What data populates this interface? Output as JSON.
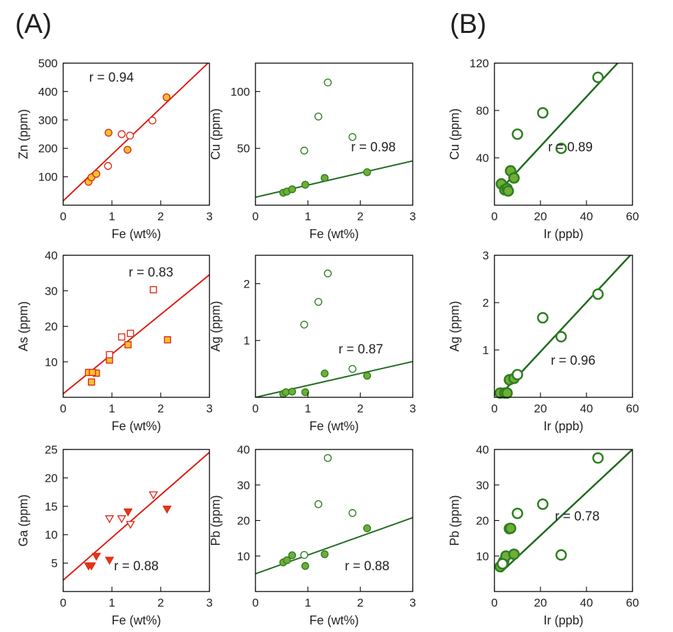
{
  "figure": {
    "panel_labels": [
      "(A)",
      "(B)"
    ]
  },
  "colors": {
    "red_line": "#dd1b10",
    "red_stroke": "#dd2a16",
    "yellow_fill": "#f2c230",
    "green_line": "#1f6b1f",
    "green_stroke": "#2e7d22",
    "green_fill": "#6fae35"
  },
  "chart_data": [
    {
      "id": "zn-fe",
      "type": "scatter",
      "theme": "red",
      "marker": "circle",
      "xlabel": "Fe (wt%)",
      "ylabel": "Zn (ppm)",
      "xlim": [
        0,
        3
      ],
      "ylim": [
        0,
        500
      ],
      "xticks": [
        0,
        1,
        2,
        3
      ],
      "yticks": [
        100,
        200,
        300,
        400,
        500
      ],
      "r_text": "r = 0.94",
      "fit": [
        [
          0,
          15
        ],
        [
          3,
          505
        ]
      ],
      "series": [
        {
          "filled": true,
          "x": [
            0.52,
            0.58,
            0.68,
            1.32,
            2.12,
            0.93
          ],
          "y": [
            82,
            98,
            110,
            195,
            380,
            255
          ]
        },
        {
          "filled": false,
          "x": [
            0.92,
            1.2,
            1.37,
            1.83
          ],
          "y": [
            138,
            250,
            245,
            298
          ]
        }
      ]
    },
    {
      "id": "cu-fe",
      "type": "scatter",
      "theme": "green",
      "marker": "circle",
      "xlabel": "Fe (wt%)",
      "ylabel": "Cu (ppm)",
      "xlim": [
        0,
        3
      ],
      "ylim": [
        0,
        125
      ],
      "xticks": [
        0,
        1,
        2,
        3
      ],
      "yticks": [
        50,
        100
      ],
      "r_text": "r = 0.98",
      "fit": [
        [
          0,
          7
        ],
        [
          3,
          39
        ]
      ],
      "series": [
        {
          "filled": true,
          "x": [
            0.53,
            0.6,
            0.7,
            0.95,
            1.32,
            2.13
          ],
          "y": [
            11,
            12,
            14,
            18,
            24,
            29
          ]
        },
        {
          "filled": false,
          "x": [
            0.93,
            1.2,
            1.38,
            1.85
          ],
          "y": [
            48,
            78,
            108,
            60
          ]
        }
      ]
    },
    {
      "id": "cu-ir",
      "type": "scatter",
      "theme": "green",
      "marker": "circle",
      "xlabel": "Ir (ppb)",
      "ylabel": "Cu (ppm)",
      "xlim": [
        0,
        60
      ],
      "ylim": [
        0,
        120
      ],
      "xticks": [
        0,
        20,
        40,
        60
      ],
      "yticks": [
        40,
        80,
        120
      ],
      "r_text": "r = 0.89",
      "fit": [
        [
          3,
          14
        ],
        [
          54,
          121
        ]
      ],
      "series": [
        {
          "filled": true,
          "x": [
            3,
            4.5,
            5.5,
            6,
            7,
            8.5
          ],
          "y": [
            18,
            13,
            14,
            12,
            29,
            23
          ]
        },
        {
          "filled": false,
          "x": [
            10,
            21,
            29,
            45
          ],
          "y": [
            60,
            78,
            48,
            108
          ]
        }
      ]
    },
    {
      "id": "as-fe",
      "type": "scatter",
      "theme": "red",
      "marker": "square",
      "xlabel": "Fe (wt%)",
      "ylabel": "As (ppm)",
      "xlim": [
        0,
        3
      ],
      "ylim": [
        0,
        40
      ],
      "xticks": [
        0,
        1,
        2,
        3
      ],
      "yticks": [
        10,
        20,
        30,
        40
      ],
      "r_text": "r = 0.83",
      "fit": [
        [
          0,
          1
        ],
        [
          3,
          34.5
        ]
      ],
      "series": [
        {
          "filled": true,
          "x": [
            0.52,
            0.58,
            0.68,
            0.95,
            1.33,
            2.14,
            0.6
          ],
          "y": [
            7,
            4.3,
            6.8,
            10.5,
            14.8,
            16.2,
            7
          ]
        },
        {
          "filled": false,
          "x": [
            0.95,
            1.2,
            1.38,
            1.85
          ],
          "y": [
            12,
            17,
            18,
            30.3
          ]
        }
      ]
    },
    {
      "id": "ag-fe",
      "type": "scatter",
      "theme": "green",
      "marker": "circle",
      "xlabel": "Fe (wt%)",
      "ylabel": "Ag (ppm)",
      "xlim": [
        0,
        3
      ],
      "ylim": [
        0,
        2.5
      ],
      "xticks": [
        0,
        1,
        2,
        3
      ],
      "yticks": [
        1,
        2
      ],
      "r_text": "r = 0.87",
      "fit": [
        [
          0,
          0
        ],
        [
          3,
          0.63
        ]
      ],
      "series": [
        {
          "filled": true,
          "x": [
            0.53,
            0.58,
            0.7,
            0.95,
            1.32,
            2.13
          ],
          "y": [
            0.06,
            0.09,
            0.1,
            0.09,
            0.42,
            0.38
          ]
        },
        {
          "filled": false,
          "x": [
            0.93,
            1.2,
            1.38,
            1.85
          ],
          "y": [
            1.28,
            1.68,
            2.18,
            0.5
          ]
        }
      ]
    },
    {
      "id": "ag-ir",
      "type": "scatter",
      "theme": "green",
      "marker": "circle",
      "xlabel": "Ir (ppb)",
      "ylabel": "Ag (ppm)",
      "xlim": [
        0,
        60
      ],
      "ylim": [
        0,
        3
      ],
      "xticks": [
        0,
        20,
        40,
        60
      ],
      "yticks": [
        1,
        2,
        3
      ],
      "r_text": "r = 0.96",
      "fit": [
        [
          2.5,
          0.05
        ],
        [
          60,
          3.05
        ]
      ],
      "series": [
        {
          "filled": true,
          "x": [
            2.5,
            4.5,
            5.5,
            6.5,
            8.5
          ],
          "y": [
            0.09,
            0.09,
            0.09,
            0.37,
            0.4
          ]
        },
        {
          "filled": false,
          "x": [
            10,
            21,
            29,
            45
          ],
          "y": [
            0.48,
            1.68,
            1.28,
            2.18
          ]
        }
      ]
    },
    {
      "id": "ga-fe",
      "type": "scatter",
      "theme": "red",
      "marker": "triangle",
      "xlabel": "Fe (wt%)",
      "ylabel": "Ga (ppm)",
      "xlim": [
        0,
        3
      ],
      "ylim": [
        0,
        25
      ],
      "xticks": [
        0,
        1,
        2,
        3
      ],
      "yticks": [
        5,
        10,
        15,
        20,
        25
      ],
      "r_text": "r = 0.88",
      "fit": [
        [
          0,
          2
        ],
        [
          3,
          24.5
        ]
      ],
      "series": [
        {
          "filled": true,
          "x": [
            0.52,
            0.58,
            0.68,
            0.95,
            1.33,
            2.13
          ],
          "y": [
            4.5,
            4.5,
            6.2,
            5.5,
            14,
            14.5
          ]
        },
        {
          "filled": false,
          "x": [
            0.95,
            1.2,
            1.38,
            1.85
          ],
          "y": [
            12.8,
            12.8,
            11.8,
            17
          ]
        }
      ]
    },
    {
      "id": "pb-fe",
      "type": "scatter",
      "theme": "green",
      "marker": "circle",
      "xlabel": "Fe (wt%)",
      "ylabel": "Pb (ppm)",
      "xlim": [
        0,
        3
      ],
      "ylim": [
        0,
        40
      ],
      "xticks": [
        0,
        1,
        2,
        3
      ],
      "yticks": [
        10,
        20,
        30,
        40
      ],
      "r_text": "r = 0.88",
      "fit": [
        [
          0,
          5
        ],
        [
          3,
          20.8
        ]
      ],
      "series": [
        {
          "filled": true,
          "x": [
            0.53,
            0.6,
            0.7,
            0.95,
            1.32,
            2.13
          ],
          "y": [
            8.2,
            8.8,
            10.2,
            7.2,
            10.5,
            17.8
          ]
        },
        {
          "filled": false,
          "x": [
            0.93,
            1.2,
            1.38,
            1.85
          ],
          "y": [
            10.3,
            24.6,
            37.6,
            22.1
          ]
        }
      ]
    },
    {
      "id": "pb-ir",
      "type": "scatter",
      "theme": "green",
      "marker": "circle",
      "xlabel": "Ir (ppb)",
      "ylabel": "Pb (ppm)",
      "xlim": [
        0,
        60
      ],
      "ylim": [
        0,
        40
      ],
      "xticks": [
        0,
        20,
        40,
        60
      ],
      "yticks": [
        10,
        20,
        30,
        40
      ],
      "r_text": "r = 0.78",
      "fit": [
        [
          3,
          5.5
        ],
        [
          60,
          40
        ]
      ],
      "series": [
        {
          "filled": true,
          "x": [
            2.5,
            4,
            5,
            6.5,
            7,
            8.5
          ],
          "y": [
            7,
            8.5,
            10,
            17.7,
            17.8,
            10.5
          ]
        },
        {
          "filled": false,
          "x": [
            10,
            21,
            29,
            45,
            3.5
          ],
          "y": [
            22,
            24.6,
            10.3,
            37.6,
            7.8
          ]
        }
      ]
    }
  ]
}
